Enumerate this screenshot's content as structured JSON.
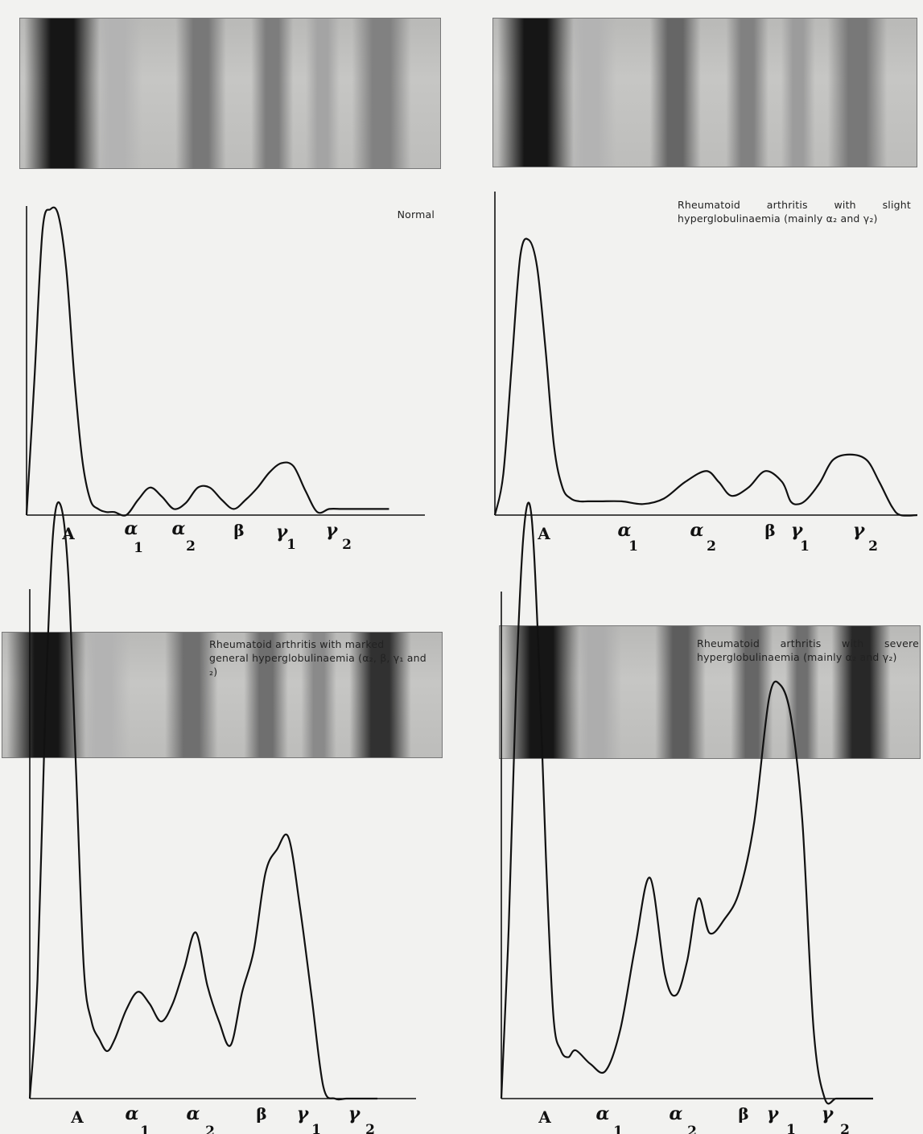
{
  "chart_data": [
    {
      "type": "line",
      "caption": "Normal",
      "x_tick_labels": [
        "A",
        "α",
        "1",
        "α",
        "2",
        "β",
        "γ",
        "1",
        "γ",
        "2"
      ],
      "strip_bands": {
        "A": 1.0,
        "alpha1": 0.12,
        "alpha2": 0.45,
        "beta": 0.42,
        "gamma1": 0.2,
        "gamma2": 0.4
      },
      "x": [
        0,
        0.02,
        0.04,
        0.06,
        0.08,
        0.1,
        0.12,
        0.14,
        0.16,
        0.18,
        0.2,
        0.22,
        0.25,
        0.28,
        0.31,
        0.34,
        0.37,
        0.4,
        0.43,
        0.46,
        0.49,
        0.52,
        0.55,
        0.58,
        0.61,
        0.64,
        0.67,
        0.7,
        0.73,
        0.76,
        0.79,
        0.82,
        0.85,
        0.88,
        0.91
      ],
      "y": [
        0,
        0.45,
        0.93,
        1.0,
        0.98,
        0.8,
        0.45,
        0.18,
        0.05,
        0.02,
        0.01,
        0.01,
        0.0,
        0.05,
        0.09,
        0.06,
        0.02,
        0.04,
        0.09,
        0.09,
        0.05,
        0.02,
        0.05,
        0.09,
        0.14,
        0.17,
        0.16,
        0.08,
        0.01,
        0.02,
        0.02,
        0.02,
        0.02,
        0.02,
        0.02
      ]
    },
    {
      "type": "line",
      "caption": "Rheumatoid arthritis with slight hyperglobulinaemia (mainly α₂ and γ₂)",
      "x_tick_labels": [
        "A",
        "α",
        "1",
        "α",
        "2",
        "β",
        "γ",
        "1",
        "γ",
        "2"
      ],
      "strip_bands": {
        "A": 1.0,
        "alpha1": 0.12,
        "alpha2": 0.55,
        "beta": 0.4,
        "gamma1": 0.25,
        "gamma2": 0.45
      },
      "x": [
        0,
        0.02,
        0.04,
        0.06,
        0.08,
        0.1,
        0.12,
        0.14,
        0.16,
        0.18,
        0.2,
        0.22,
        0.25,
        0.3,
        0.35,
        0.4,
        0.45,
        0.5,
        0.53,
        0.56,
        0.6,
        0.64,
        0.68,
        0.7,
        0.72,
        0.74,
        0.77,
        0.8,
        0.84,
        0.88,
        0.91,
        0.94,
        0.96,
        1.0
      ],
      "y": [
        0,
        0.15,
        0.55,
        0.94,
        1.0,
        0.9,
        0.6,
        0.25,
        0.1,
        0.06,
        0.05,
        0.05,
        0.05,
        0.05,
        0.04,
        0.06,
        0.12,
        0.16,
        0.12,
        0.07,
        0.1,
        0.16,
        0.12,
        0.05,
        0.04,
        0.06,
        0.12,
        0.2,
        0.22,
        0.2,
        0.12,
        0.03,
        0.0,
        0.0
      ]
    },
    {
      "type": "line",
      "caption": "Rheumatoid arthritis with marked general hyperglobulinaemia (α₂, β, γ₁ and ₂)",
      "x_tick_labels": [
        "A",
        "α",
        "1",
        "α",
        "2",
        "β",
        "γ",
        "1",
        "γ",
        "2"
      ],
      "strip_bands": {
        "A": 1.0,
        "alpha1": 0.12,
        "alpha2": 0.5,
        "beta": 0.5,
        "gamma1": 0.35,
        "gamma2": 0.85
      },
      "x": [
        0,
        0.02,
        0.04,
        0.06,
        0.08,
        0.1,
        0.12,
        0.14,
        0.16,
        0.18,
        0.2,
        0.22,
        0.25,
        0.28,
        0.31,
        0.34,
        0.37,
        0.4,
        0.43,
        0.46,
        0.49,
        0.52,
        0.55,
        0.58,
        0.61,
        0.64,
        0.67,
        0.7,
        0.73,
        0.76,
        0.79,
        0.82,
        0.85,
        0.88,
        0.9
      ],
      "y": [
        0,
        0.2,
        0.65,
        0.95,
        1.0,
        0.88,
        0.55,
        0.22,
        0.13,
        0.1,
        0.08,
        0.1,
        0.15,
        0.18,
        0.16,
        0.13,
        0.16,
        0.22,
        0.28,
        0.19,
        0.13,
        0.09,
        0.18,
        0.25,
        0.38,
        0.42,
        0.44,
        0.32,
        0.17,
        0.02,
        0.0,
        0.0,
        0.0,
        0.0,
        0.0
      ]
    },
    {
      "type": "line",
      "caption": "Rheumatoid arthritis with severe hyperglobulinaemia (mainly α₂ and γ₂)",
      "x_tick_labels": [
        "A",
        "α",
        "1",
        "α",
        "2",
        "β",
        "γ",
        "1",
        "γ",
        "2"
      ],
      "strip_bands": {
        "A": 1.0,
        "alpha1": 0.15,
        "alpha2": 0.6,
        "beta": 0.55,
        "gamma1": 0.5,
        "gamma2": 0.9
      },
      "x": [
        0,
        0.02,
        0.04,
        0.06,
        0.08,
        0.1,
        0.12,
        0.14,
        0.16,
        0.18,
        0.2,
        0.24,
        0.28,
        0.32,
        0.36,
        0.4,
        0.44,
        0.47,
        0.5,
        0.53,
        0.56,
        0.6,
        0.64,
        0.68,
        0.72,
        0.75,
        0.78,
        0.81,
        0.84,
        0.87,
        0.9,
        0.93,
        0.96,
        0.98,
        1.0
      ],
      "y": [
        0,
        0.25,
        0.6,
        0.82,
        0.85,
        0.65,
        0.35,
        0.12,
        0.07,
        0.06,
        0.07,
        0.05,
        0.04,
        0.1,
        0.22,
        0.32,
        0.18,
        0.15,
        0.2,
        0.29,
        0.24,
        0.26,
        0.3,
        0.4,
        0.58,
        0.6,
        0.55,
        0.4,
        0.1,
        0.0,
        0.0,
        0.0,
        0.0,
        0.0,
        0.0
      ]
    }
  ]
}
